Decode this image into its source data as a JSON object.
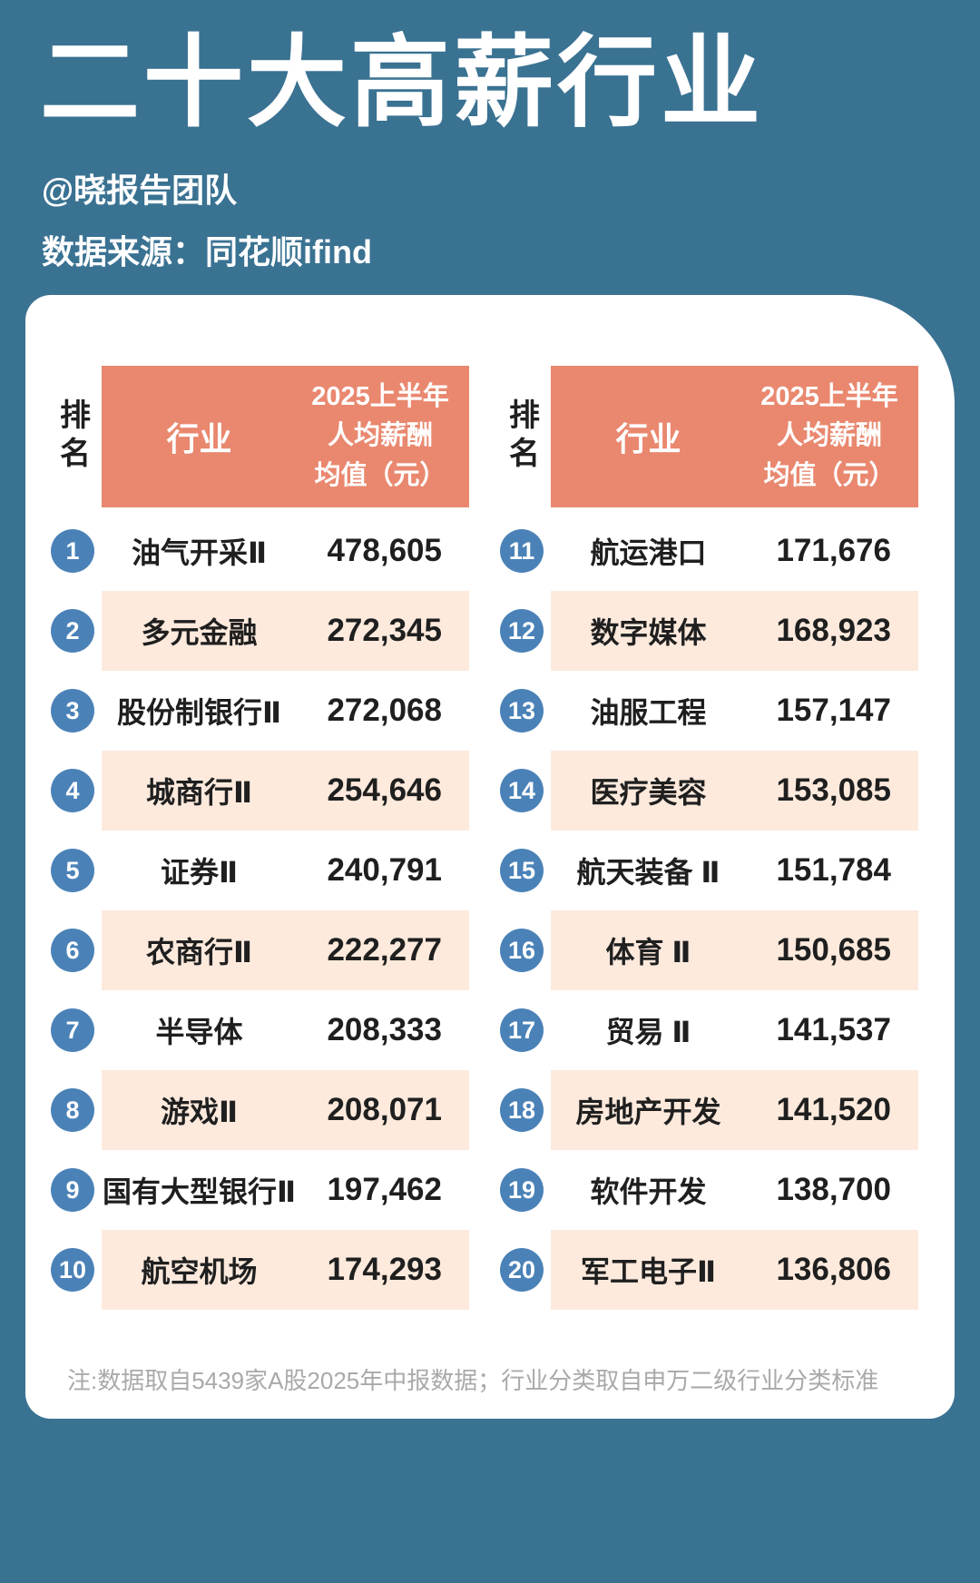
{
  "page": {
    "title": "二十大高薪行业",
    "byline": "@晓报告团队",
    "source": "数据来源：同花顺ifind",
    "footnote": "注:数据取自5439家A股2025年中报数据；行业分类取自申万二级行业分类标准"
  },
  "table": {
    "rank_header": "排名",
    "industry_header": "行业",
    "value_header_lines": [
      "2025上半年",
      "人均薪酬",
      "均值（元）"
    ],
    "left_rows": [
      {
        "rank": "1",
        "industry": "油气开采Ⅱ",
        "value": "478,605"
      },
      {
        "rank": "2",
        "industry": "多元金融",
        "value": "272,345"
      },
      {
        "rank": "3",
        "industry": "股份制银行Ⅱ",
        "value": "272,068"
      },
      {
        "rank": "4",
        "industry": "城商行Ⅱ",
        "value": "254,646"
      },
      {
        "rank": "5",
        "industry": "证券Ⅱ",
        "value": "240,791"
      },
      {
        "rank": "6",
        "industry": "农商行Ⅱ",
        "value": "222,277"
      },
      {
        "rank": "7",
        "industry": "半导体",
        "value": "208,333"
      },
      {
        "rank": "8",
        "industry": "游戏Ⅱ",
        "value": "208,071"
      },
      {
        "rank": "9",
        "industry": "国有大型银行Ⅱ",
        "value": "197,462"
      },
      {
        "rank": "10",
        "industry": "航空机场",
        "value": "174,293"
      }
    ],
    "right_rows": [
      {
        "rank": "11",
        "industry": "航运港口",
        "value": "171,676"
      },
      {
        "rank": "12",
        "industry": "数字媒体",
        "value": "168,923"
      },
      {
        "rank": "13",
        "industry": "油服工程",
        "value": "157,147"
      },
      {
        "rank": "14",
        "industry": "医疗美容",
        "value": "153,085"
      },
      {
        "rank": "15",
        "industry": "航天装备 Ⅱ",
        "value": "151,784"
      },
      {
        "rank": "16",
        "industry": "体育 Ⅱ",
        "value": "150,685"
      },
      {
        "rank": "17",
        "industry": "贸易 Ⅱ",
        "value": "141,537"
      },
      {
        "rank": "18",
        "industry": "房地产开发",
        "value": "141,520"
      },
      {
        "rank": "19",
        "industry": "软件开发",
        "value": "138,700"
      },
      {
        "rank": "20",
        "industry": "军工电子Ⅱ",
        "value": "136,806"
      }
    ]
  },
  "colors": {
    "bg": "#3a7292",
    "card": "#ffffff",
    "header": "#e9886f",
    "row-alt": "#fdeadd",
    "rank-circle": "#4a82b8",
    "ink": "#1f1f1f",
    "title": "#ffffff",
    "note": "#a9a9a9"
  },
  "chart_data": {
    "type": "table",
    "title": "二十大高薪行业",
    "columns": [
      "排名",
      "行业",
      "2025上半年人均薪酬均值（元）"
    ],
    "rows": [
      [
        1,
        "油气开采Ⅱ",
        478605
      ],
      [
        2,
        "多元金融",
        272345
      ],
      [
        3,
        "股份制银行Ⅱ",
        272068
      ],
      [
        4,
        "城商行Ⅱ",
        254646
      ],
      [
        5,
        "证券Ⅱ",
        240791
      ],
      [
        6,
        "农商行Ⅱ",
        222277
      ],
      [
        7,
        "半导体",
        208333
      ],
      [
        8,
        "游戏Ⅱ",
        208071
      ],
      [
        9,
        "国有大型银行Ⅱ",
        197462
      ],
      [
        10,
        "航空机场",
        174293
      ],
      [
        11,
        "航运港口",
        171676
      ],
      [
        12,
        "数字媒体",
        168923
      ],
      [
        13,
        "油服工程",
        157147
      ],
      [
        14,
        "医疗美容",
        153085
      ],
      [
        15,
        "航天装备 Ⅱ",
        151784
      ],
      [
        16,
        "体育 Ⅱ",
        150685
      ],
      [
        17,
        "贸易 Ⅱ",
        141537
      ],
      [
        18,
        "房地产开发",
        141520
      ],
      [
        19,
        "软件开发",
        138700
      ],
      [
        20,
        "军工电子Ⅱ",
        136806
      ]
    ],
    "source": "同花顺ifind",
    "note": "数据取自5439家A股2025年中报数据；行业分类取自申万二级行业分类标准"
  }
}
